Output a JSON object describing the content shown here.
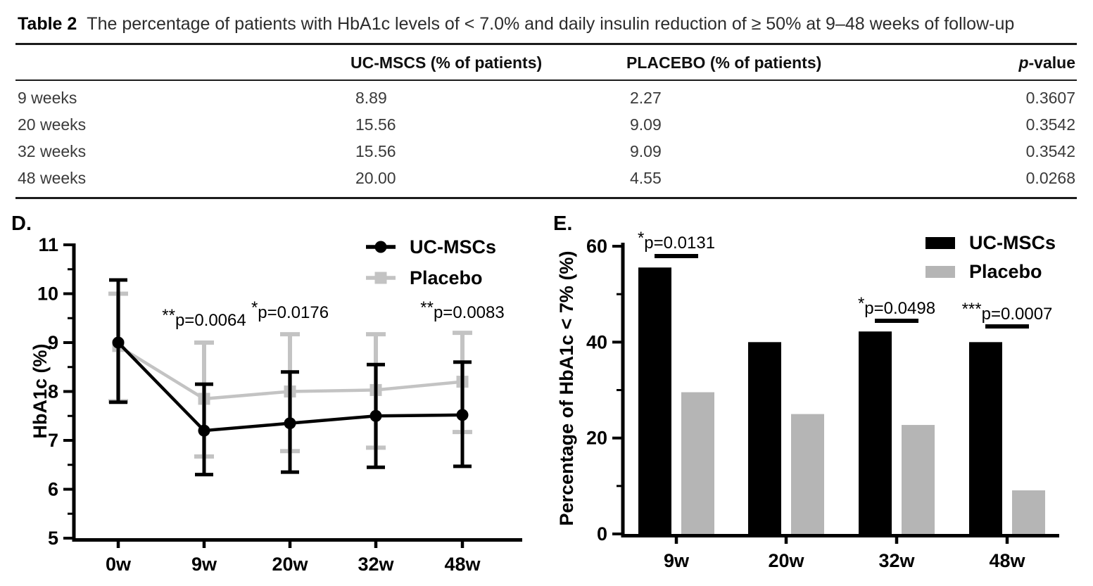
{
  "table": {
    "title_label": "Table 2",
    "title_text": "The percentage of patients with HbA1c levels of < 7.0% and daily insulin reduction of ≥ 50% at 9–48 weeks of follow-up",
    "columns": {
      "col2": "UC-MSCS (% of patients)",
      "col3": "PLACEBO (% of patients)",
      "col4_italic": "p",
      "col4_rest": "-value"
    },
    "rows": [
      {
        "label": "9 weeks",
        "ucmscs": "8.89",
        "placebo": "2.27",
        "pvalue": "0.3607"
      },
      {
        "label": "20 weeks",
        "ucmscs": "15.56",
        "placebo": "9.09",
        "pvalue": "0.3542"
      },
      {
        "label": "32 weeks",
        "ucmscs": "15.56",
        "placebo": "9.09",
        "pvalue": "0.3542"
      },
      {
        "label": "48 weeks",
        "ucmscs": "20.00",
        "placebo": "4.55",
        "pvalue": "0.0268"
      }
    ]
  },
  "chart_data": [
    {
      "id": "D",
      "panel_label": "D.",
      "type": "line",
      "ylabel": "HbA1c (%)",
      "x_categories": [
        "0w",
        "9w",
        "20w",
        "32w",
        "48w"
      ],
      "ylim": [
        5,
        11
      ],
      "yticks": [
        5,
        6,
        7,
        8,
        9,
        10,
        11
      ],
      "grid": false,
      "legend_position": "top-right-inside",
      "series": [
        {
          "name": "UC-MSCs",
          "color": "#000000",
          "marker": "circle",
          "values": [
            9.0,
            7.2,
            7.35,
            7.5,
            7.52
          ],
          "err_low": [
            7.78,
            6.3,
            6.35,
            6.45,
            6.47
          ],
          "err_high": [
            10.28,
            8.15,
            8.4,
            8.55,
            8.6
          ]
        },
        {
          "name": "Placebo",
          "color": "#c3c3c3",
          "marker": "square",
          "values": [
            8.93,
            7.85,
            8.0,
            8.03,
            8.2
          ],
          "err_low": [
            7.8,
            6.67,
            6.78,
            6.85,
            7.17
          ],
          "err_high": [
            10.0,
            9.0,
            9.17,
            9.17,
            9.2
          ]
        }
      ],
      "annotations": [
        {
          "stars": "**",
          "text": "p=0.0064",
          "x_category": "9w"
        },
        {
          "stars": "*",
          "text": "p=0.0176",
          "x_category": "20w"
        },
        {
          "stars": "**",
          "text": "p=0.0083",
          "x_category": "48w"
        }
      ]
    },
    {
      "id": "E",
      "panel_label": "E.",
      "type": "bar",
      "ylabel": "Percentage of HbA1c < 7% (%)",
      "categories": [
        "9w",
        "20w",
        "32w",
        "48w"
      ],
      "ylim": [
        0,
        60
      ],
      "yticks": [
        0,
        20,
        40,
        60
      ],
      "grid": false,
      "legend_position": "top-right-inside",
      "series": [
        {
          "name": "UC-MSCs",
          "color": "#000000",
          "values": [
            55.56,
            40.0,
            42.22,
            40.0
          ]
        },
        {
          "name": "Placebo",
          "color": "#b5b5b5",
          "values": [
            29.55,
            25.0,
            22.73,
            9.09
          ]
        }
      ],
      "annotations": [
        {
          "stars": "*",
          "text": "p=0.0131",
          "category": "9w"
        },
        {
          "stars": "*",
          "text": "p=0.0498",
          "category": "32w"
        },
        {
          "stars": "***",
          "text": "p=0.0007",
          "category": "48w"
        }
      ]
    }
  ]
}
